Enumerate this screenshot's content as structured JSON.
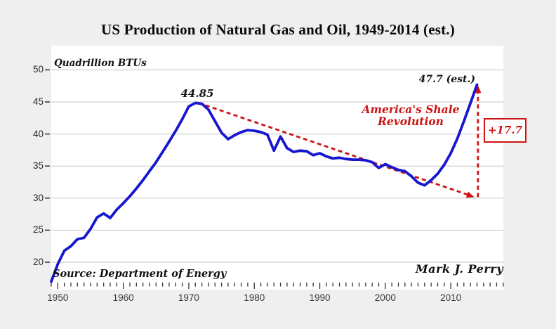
{
  "title": "US Production of Natural Gas and Oil, 1949-2014 (est.)",
  "colors": {
    "page_background": "#efefef",
    "plot_background": "#ffffff",
    "gridline": "#c6c6c6",
    "series_blue": "#1717cf",
    "accent_red": "#cc1414",
    "tick": "#333333"
  },
  "chart_data": {
    "type": "line",
    "title": "US Production of Natural Gas and Oil, 1949-2014 (est.)",
    "unit_label": "Quadrillion BTUs",
    "source": "Source: Department of Energy",
    "credit": "Mark J. Perry",
    "xlabel": "",
    "ylabel": "Quadrillion BTUs",
    "ylim": [
      16.7,
      53.5
    ],
    "yticks": [
      20,
      25,
      30,
      35,
      40,
      45,
      50
    ],
    "xticks": [
      1950,
      1960,
      1970,
      1980,
      1990,
      2000,
      2010
    ],
    "minor_tick_range": [
      1949,
      2018
    ],
    "grid": true,
    "legend": "none",
    "years": [
      1949,
      1950,
      1951,
      1952,
      1953,
      1954,
      1955,
      1956,
      1957,
      1958,
      1959,
      1960,
      1961,
      1962,
      1963,
      1964,
      1965,
      1966,
      1967,
      1968,
      1969,
      1970,
      1971,
      1972,
      1973,
      1974,
      1975,
      1976,
      1977,
      1978,
      1979,
      1980,
      1981,
      1982,
      1983,
      1984,
      1985,
      1986,
      1987,
      1988,
      1989,
      1990,
      1991,
      1992,
      1993,
      1994,
      1995,
      1996,
      1997,
      1998,
      1999,
      2000,
      2001,
      2002,
      2003,
      2004,
      2005,
      2006,
      2007,
      2008,
      2009,
      2010,
      2011,
      2012,
      2013,
      2014
    ],
    "series": [
      {
        "name": "US production of natural gas and oil (quadrillion BTUs)",
        "color": "#1717cf",
        "values": [
          17.0,
          19.7,
          21.8,
          22.5,
          23.6,
          23.8,
          25.2,
          27.0,
          27.6,
          26.9,
          28.2,
          29.2,
          30.3,
          31.5,
          32.8,
          34.2,
          35.6,
          37.2,
          38.8,
          40.5,
          42.3,
          44.3,
          44.85,
          44.7,
          43.8,
          42.0,
          40.2,
          39.2,
          39.8,
          40.3,
          40.6,
          40.5,
          40.3,
          39.9,
          37.4,
          39.6,
          37.8,
          37.2,
          37.4,
          37.3,
          36.7,
          37.0,
          36.5,
          36.2,
          36.3,
          36.1,
          36.0,
          36.0,
          35.9,
          35.6,
          34.7,
          35.3,
          34.8,
          34.4,
          34.2,
          33.4,
          32.4,
          32.0,
          32.8,
          33.8,
          35.2,
          37.0,
          39.3,
          42.0,
          44.8,
          47.7
        ]
      }
    ],
    "annotations": {
      "peak_label": "44.85",
      "peak_point": {
        "year": 1971,
        "value": 44.85
      },
      "end_label": "47.7 (est.)",
      "end_point": {
        "year": 2014,
        "value": 47.7
      },
      "shale_line1": "America's Shale",
      "shale_line2": "Revolution",
      "delta_label": "+17.7",
      "trend_color": "#cc1414",
      "trend_start": {
        "year": 1971.5,
        "value": 44.85
      },
      "trend_end": {
        "year": 2013.6,
        "value": 30.15
      },
      "delta_arrow": {
        "year": 2014.15,
        "from_value": 30.15,
        "to_value": 47.6
      }
    }
  }
}
